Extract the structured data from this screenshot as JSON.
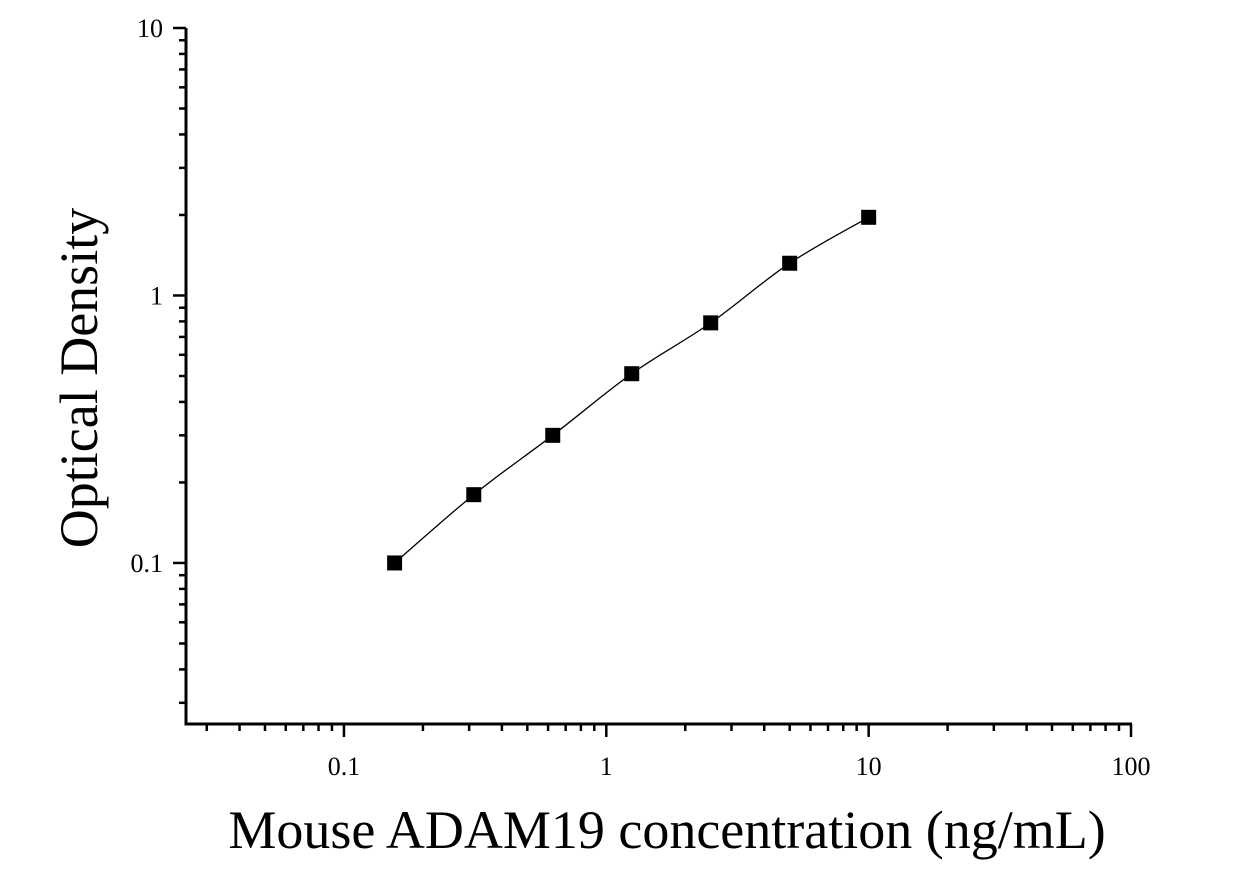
{
  "chart_data": {
    "type": "scatter",
    "xlabel": "Mouse ADAM19 concentration (ng/mL)",
    "ylabel": "Optical Density",
    "x_scale": "log",
    "y_scale": "log",
    "xlim": [
      0.025,
      100
    ],
    "ylim": [
      0.025,
      10
    ],
    "x_ticks": [
      {
        "value": 0.1,
        "label": "0.1"
      },
      {
        "value": 1,
        "label": "1"
      },
      {
        "value": 10,
        "label": "10"
      },
      {
        "value": 100,
        "label": "100"
      }
    ],
    "y_ticks": [
      {
        "value": 0.1,
        "label": "0.1"
      },
      {
        "value": 1,
        "label": "1"
      },
      {
        "value": 10,
        "label": "10"
      }
    ],
    "grid": false,
    "marker": "square",
    "series": [
      {
        "x": [
          0.156,
          0.3125,
          0.625,
          1.25,
          2.5,
          5,
          10
        ],
        "y": [
          0.1,
          0.18,
          0.3,
          0.51,
          0.79,
          1.32,
          1.96
        ],
        "fit_line": true,
        "color": "#000000"
      }
    ]
  }
}
